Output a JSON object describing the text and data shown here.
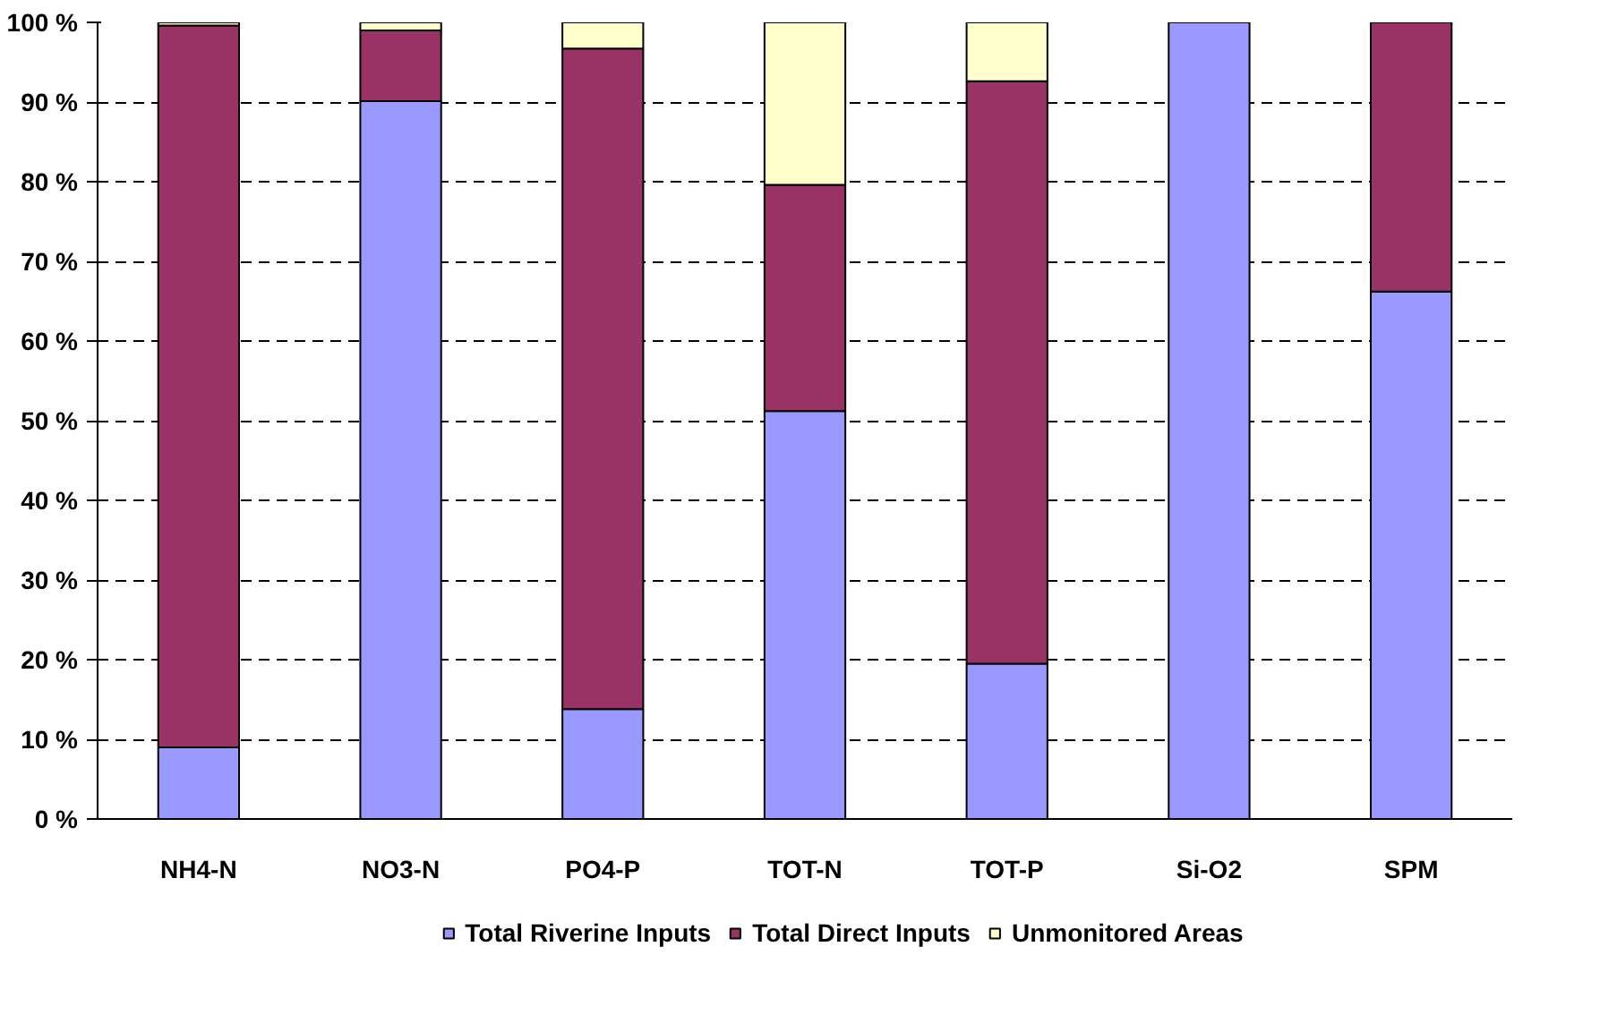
{
  "chart_data": {
    "type": "bar",
    "stacked": true,
    "categories": [
      "NH4-N",
      "NO3-N",
      "PO4-P",
      "TOT-N",
      "TOT-P",
      "Si-O2",
      "SPM"
    ],
    "series": [
      {
        "name": "Total Riverine Inputs",
        "color": "#9999ff",
        "values": [
          9,
          90.1,
          13.8,
          51.2,
          19.5,
          100,
          66.2
        ]
      },
      {
        "name": "Total Direct Inputs",
        "color": "#993366",
        "values": [
          90.6,
          8.9,
          82.9,
          28.4,
          73.1,
          0,
          33.8
        ]
      },
      {
        "name": "Unmonitored Areas",
        "color": "#ffffcc",
        "values": [
          0.4,
          1.0,
          3.3,
          20.4,
          7.4,
          0,
          0
        ]
      }
    ],
    "ylim": [
      0,
      100
    ],
    "yticks": [
      {
        "value": 0,
        "label": "0 %"
      },
      {
        "value": 10,
        "label": "10 %"
      },
      {
        "value": 20,
        "label": "20 %"
      },
      {
        "value": 30,
        "label": "30 %"
      },
      {
        "value": 40,
        "label": "40 %"
      },
      {
        "value": 50,
        "label": "50 %"
      },
      {
        "value": 60,
        "label": "60 %"
      },
      {
        "value": 70,
        "label": "70 %"
      },
      {
        "value": 80,
        "label": "80 %"
      },
      {
        "value": 90,
        "label": "90 %"
      },
      {
        "value": 100,
        "label": "100 %"
      }
    ],
    "grid": "y",
    "legend": "bottom"
  }
}
